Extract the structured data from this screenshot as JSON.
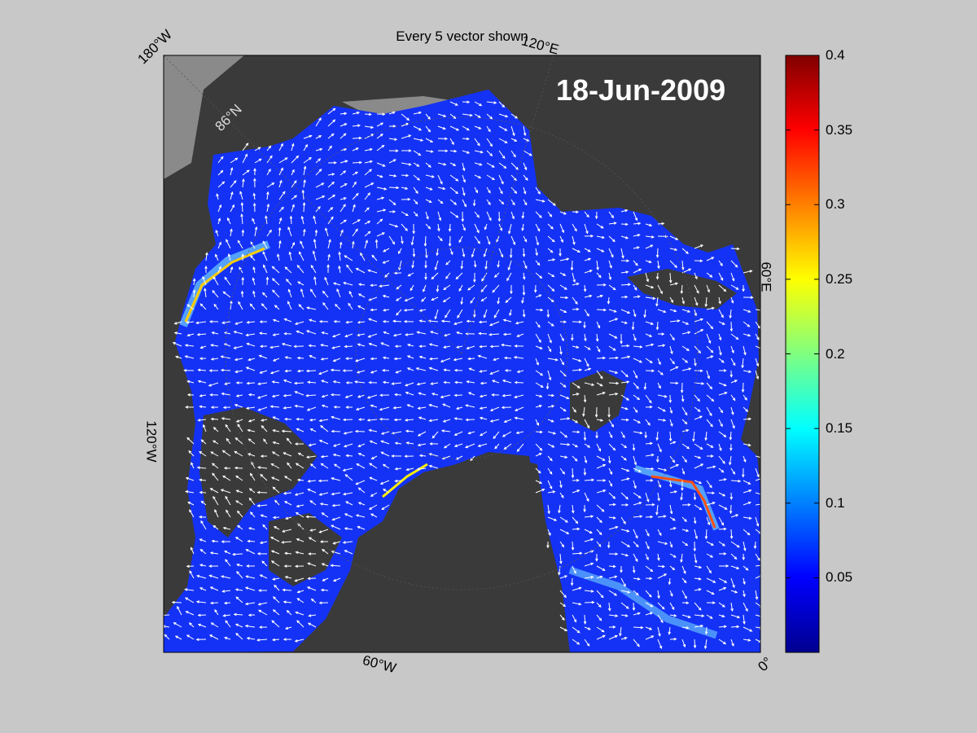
{
  "title": "Every 5 vector shown",
  "date": "18-Jun-2009",
  "longitude_labels": [
    "180°W",
    "120°E",
    "60°E",
    "0°",
    "60°W",
    "120°W"
  ],
  "latitude_label": "86°N",
  "colorbar": {
    "colormap": "jet",
    "min": 0,
    "max": 0.4,
    "ticks": [
      "0.4",
      "0.35",
      "0.3",
      "0.25",
      "0.2",
      "0.15",
      "0.1",
      "0.05"
    ]
  },
  "colors": {
    "figure_background": "#c8c8c8",
    "land": "#3a3a3a",
    "ocean_outside_ice": "#8a8a8a",
    "ice_low": "#1030ff",
    "vector": "#ffffff"
  },
  "icons": [
    "ice-drift-vector-icon"
  ]
}
